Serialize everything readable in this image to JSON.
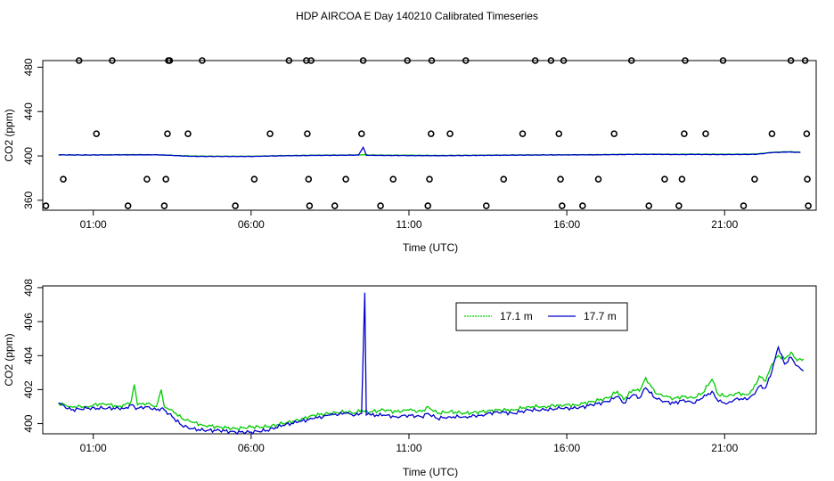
{
  "title": "HDP AIRCOA E  Day 140210  Calibrated Timeseries",
  "colors": {
    "green": "#00cc00",
    "blue": "#0000cc",
    "axis": "#000000",
    "points": "#000000"
  },
  "chart_data": [
    {
      "type": "line",
      "panel": "top",
      "xlabel": "Time (UTC)",
      "ylabel": "CO2 (ppm)",
      "xlim": [
        -0.6,
        23.9
      ],
      "ylim": [
        351,
        486
      ],
      "x_ticks": [
        1,
        6,
        11,
        16,
        21
      ],
      "x_tick_labels": [
        "01:00",
        "06:00",
        "11:00",
        "16:00",
        "21:00"
      ],
      "y_ticks": [
        360,
        400,
        440,
        480
      ],
      "y_tick_labels": [
        "360",
        "400",
        "440",
        "480"
      ],
      "grid": false,
      "series": [
        {
          "color": "#00cc00",
          "x": [
            -0.1,
            0.8,
            1.5,
            2.2,
            3.0,
            3.5,
            4.1,
            5.0,
            6.0,
            7.0,
            8.0,
            8.9,
            9.4,
            9.6,
            9.8,
            10.2,
            11.0,
            12.0,
            13.0,
            14.0,
            15.0,
            16.0,
            17.0,
            18.0,
            18.8,
            19.5,
            20.0,
            21.0,
            22.0,
            22.5,
            23.0,
            23.4
          ],
          "y": [
            400.9,
            400.8,
            401.0,
            401.2,
            401.0,
            400.6,
            399.9,
            399.7,
            399.7,
            400.3,
            400.6,
            400.8,
            400.9,
            401.1,
            400.8,
            400.7,
            400.6,
            400.4,
            400.6,
            400.8,
            400.9,
            401.0,
            401.2,
            401.5,
            401.6,
            401.5,
            401.6,
            401.5,
            401.7,
            403.2,
            403.8,
            403.4
          ]
        },
        {
          "color": "#0000cc",
          "x": [
            -0.1,
            0.8,
            1.5,
            2.2,
            3.0,
            3.5,
            4.1,
            5.0,
            6.0,
            7.0,
            8.0,
            8.9,
            9.4,
            9.55,
            9.65,
            9.8,
            10.2,
            11.0,
            12.0,
            13.0,
            14.0,
            15.0,
            16.0,
            17.0,
            18.0,
            18.8,
            19.5,
            20.0,
            21.0,
            22.0,
            22.5,
            23.0,
            23.4
          ],
          "y": [
            400.9,
            400.8,
            400.9,
            400.9,
            401.0,
            400.4,
            399.6,
            399.5,
            399.5,
            400.1,
            400.4,
            400.6,
            400.7,
            407.7,
            400.5,
            400.5,
            400.4,
            400.3,
            400.2,
            400.4,
            400.6,
            400.8,
            400.9,
            401.0,
            401.3,
            401.4,
            401.2,
            401.3,
            401.2,
            401.4,
            403.0,
            403.5,
            403.1
          ]
        }
      ],
      "points": {
        "x": [
          -0.5,
          0.05,
          0.55,
          1.1,
          1.6,
          2.1,
          2.7,
          3.25,
          3.3,
          3.35,
          3.38,
          3.42,
          4.0,
          4.45,
          5.5,
          6.1,
          6.6,
          7.2,
          7.75,
          7.78,
          7.82,
          7.85,
          7.9,
          8.65,
          9.0,
          9.5,
          9.55,
          10.1,
          10.5,
          10.95,
          11.6,
          11.65,
          11.7,
          11.72,
          12.3,
          12.8,
          13.45,
          14.0,
          14.6,
          15.0,
          15.5,
          15.75,
          15.8,
          15.85,
          15.9,
          16.5,
          17.0,
          17.5,
          18.05,
          18.6,
          19.1,
          19.55,
          19.65,
          19.72,
          19.75,
          20.4,
          20.95,
          21.6,
          21.95,
          22.5,
          23.1,
          23.55,
          23.6,
          23.62,
          23.65
        ],
        "y": [
          355,
          379,
          486,
          420,
          486,
          355,
          379,
          355,
          379,
          420,
          486,
          486,
          420,
          486,
          355,
          379,
          420,
          486,
          486,
          420,
          379,
          355,
          486,
          355,
          379,
          420,
          486,
          355,
          379,
          486,
          355,
          379,
          420,
          486,
          420,
          486,
          355,
          379,
          420,
          486,
          486,
          420,
          379,
          355,
          486,
          355,
          379,
          420,
          486,
          355,
          379,
          355,
          379,
          420,
          486,
          420,
          486,
          355,
          379,
          420,
          486,
          486,
          420,
          379,
          355
        ]
      }
    },
    {
      "type": "line",
      "panel": "bottom",
      "xlabel": "Time (UTC)",
      "ylabel": "CO2 (ppm)",
      "xlim": [
        -0.6,
        23.9
      ],
      "ylim": [
        399.4,
        408.1
      ],
      "x_ticks": [
        1,
        6,
        11,
        16,
        21
      ],
      "x_tick_labels": [
        "01:00",
        "06:00",
        "11:00",
        "16:00",
        "21:00"
      ],
      "y_ticks": [
        400,
        402,
        404,
        406,
        408
      ],
      "y_tick_labels": [
        "400",
        "402",
        "404",
        "406",
        "408"
      ],
      "grid": false,
      "legend": {
        "position": "top-right",
        "entries": [
          {
            "name": "17.1 m",
            "color": "#00cc00"
          },
          {
            "name": "17.7 m",
            "color": "#0000cc"
          }
        ]
      },
      "series": [
        {
          "name": "17.1 m",
          "color": "#00cc00",
          "x": [
            -0.1,
            0.3,
            0.8,
            1.3,
            1.8,
            2.0,
            2.2,
            2.3,
            2.4,
            2.7,
            3.0,
            3.15,
            3.25,
            3.5,
            3.8,
            4.1,
            4.5,
            5.0,
            5.5,
            6.0,
            6.5,
            7.0,
            7.5,
            8.0,
            8.5,
            9.0,
            9.3,
            9.5,
            9.6,
            9.8,
            10.2,
            10.6,
            11.0,
            11.4,
            11.6,
            11.9,
            12.3,
            12.8,
            13.3,
            13.8,
            14.3,
            14.8,
            15.3,
            15.8,
            16.3,
            16.8,
            17.3,
            17.6,
            17.8,
            18.1,
            18.3,
            18.5,
            18.8,
            19.1,
            19.4,
            19.7,
            20.0,
            20.3,
            20.6,
            20.8,
            21.1,
            21.4,
            21.7,
            21.9,
            22.1,
            22.3,
            22.5,
            22.7,
            22.9,
            23.1,
            23.3,
            23.5
          ],
          "y": [
            401.2,
            401.0,
            401.0,
            401.2,
            401.0,
            401.1,
            401.3,
            402.3,
            401.1,
            401.2,
            401.0,
            402.0,
            401.0,
            400.8,
            400.3,
            400.1,
            399.9,
            399.8,
            399.7,
            399.8,
            399.8,
            400.0,
            400.2,
            400.5,
            400.6,
            400.7,
            400.6,
            400.8,
            400.7,
            400.7,
            400.8,
            400.7,
            400.8,
            400.7,
            401.0,
            400.6,
            400.7,
            400.6,
            400.7,
            400.8,
            400.8,
            401.0,
            401.0,
            401.1,
            401.1,
            401.3,
            401.5,
            401.9,
            401.4,
            402.0,
            401.9,
            402.7,
            401.8,
            401.6,
            401.5,
            401.6,
            401.5,
            401.8,
            402.6,
            401.7,
            401.6,
            401.8,
            401.7,
            402.0,
            402.8,
            402.5,
            403.5,
            404.0,
            403.8,
            404.2,
            403.7,
            403.8
          ]
        },
        {
          "name": "17.7 m",
          "color": "#0000cc",
          "x": [
            -0.1,
            0.3,
            0.8,
            1.3,
            1.8,
            2.0,
            2.2,
            2.3,
            2.4,
            2.7,
            3.0,
            3.15,
            3.25,
            3.5,
            3.8,
            4.1,
            4.5,
            5.0,
            5.5,
            6.0,
            6.5,
            7.0,
            7.5,
            8.0,
            8.5,
            9.0,
            9.3,
            9.5,
            9.6,
            9.65,
            9.72,
            9.8,
            10.2,
            10.6,
            11.0,
            11.4,
            11.6,
            11.9,
            12.3,
            12.8,
            13.3,
            13.8,
            14.3,
            14.8,
            15.3,
            15.8,
            16.3,
            16.8,
            17.3,
            17.6,
            17.8,
            18.1,
            18.3,
            18.5,
            18.8,
            19.1,
            19.4,
            19.7,
            20.0,
            20.3,
            20.6,
            20.8,
            21.1,
            21.4,
            21.7,
            21.9,
            22.1,
            22.3,
            22.5,
            22.7,
            22.9,
            23.1,
            23.3,
            23.5
          ],
          "y": [
            401.2,
            400.8,
            400.9,
            400.9,
            400.9,
            400.9,
            401.1,
            401.0,
            400.9,
            401.0,
            400.8,
            400.9,
            400.8,
            400.4,
            399.9,
            399.7,
            399.6,
            399.6,
            399.5,
            399.5,
            399.6,
            399.9,
            400.1,
            400.3,
            400.5,
            400.6,
            400.5,
            400.6,
            407.7,
            400.5,
            400.6,
            400.5,
            400.5,
            400.4,
            400.5,
            400.4,
            400.6,
            400.3,
            400.4,
            400.4,
            400.5,
            400.7,
            400.6,
            400.8,
            400.8,
            400.9,
            400.9,
            401.1,
            401.3,
            401.6,
            401.2,
            401.7,
            401.5,
            402.1,
            401.5,
            401.3,
            401.2,
            401.4,
            401.2,
            401.5,
            401.9,
            401.3,
            401.2,
            401.5,
            401.4,
            401.7,
            402.2,
            402.1,
            403.1,
            404.5,
            403.5,
            403.9,
            403.4,
            403.1
          ]
        }
      ]
    }
  ]
}
